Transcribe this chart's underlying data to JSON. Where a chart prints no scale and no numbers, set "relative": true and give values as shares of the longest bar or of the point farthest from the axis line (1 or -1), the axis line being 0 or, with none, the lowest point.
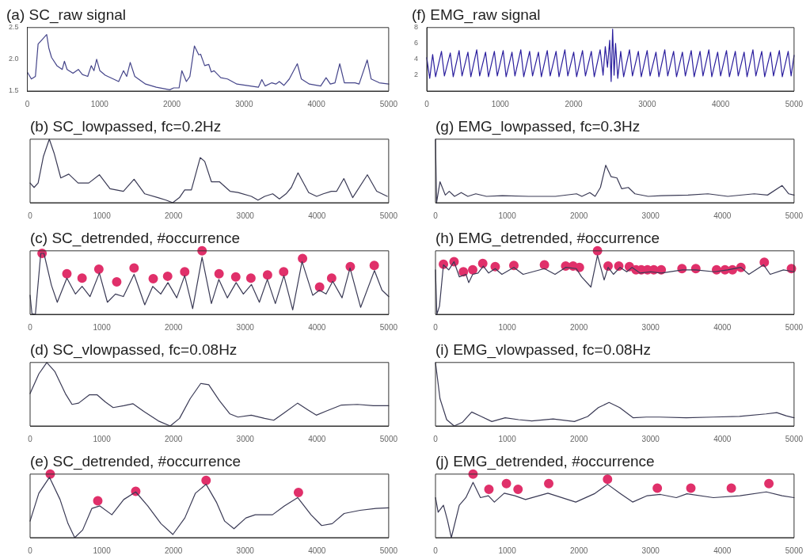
{
  "chart_data": [
    {
      "type": "line",
      "title": "(a) SC_raw signal",
      "xlim": [
        0,
        5000
      ],
      "xticks": [
        0,
        1000,
        2000,
        3000,
        4000,
        5000
      ],
      "ylim": [
        1.5,
        2.5
      ],
      "yticks": [
        1.5,
        {
          "value": 2,
          "label": "2.0"
        },
        2.5
      ],
      "series": [
        {
          "color": "#45458a",
          "x": [
            0,
            56,
            112,
            149,
            204,
            268,
            297,
            335,
            409,
            483,
            513,
            550,
            632,
            706,
            762,
            836,
            885,
            922,
            959,
            1004,
            1078,
            1190,
            1264,
            1331,
            1375,
            1424,
            1487,
            1636,
            1784,
            1970,
            2026,
            2100,
            2138,
            2201,
            2249,
            2312,
            2372,
            2398,
            2454,
            2510,
            2546,
            2584,
            2677,
            2770,
            2900,
            3086,
            3197,
            3245,
            3290,
            3383,
            3439,
            3487,
            3550,
            3625,
            3736,
            3792,
            3903,
            4059,
            4134,
            4193,
            4257,
            4323,
            4387,
            4535,
            4591,
            4703,
            4758,
            4870,
            5000
          ],
          "values": [
            1.8,
            1.69,
            1.73,
            2.24,
            2.31,
            2.39,
            2.18,
            2.03,
            1.9,
            1.84,
            1.97,
            1.84,
            1.78,
            1.84,
            1.76,
            1.73,
            1.9,
            1.82,
            2.0,
            1.82,
            1.75,
            1.69,
            1.65,
            1.82,
            1.73,
            1.95,
            1.73,
            1.61,
            1.56,
            1.52,
            1.55,
            1.55,
            1.82,
            1.65,
            1.73,
            2.21,
            2.07,
            2.08,
            1.9,
            1.92,
            1.8,
            1.82,
            1.71,
            1.69,
            1.61,
            1.58,
            1.56,
            1.68,
            1.58,
            1.63,
            1.61,
            1.65,
            1.59,
            1.69,
            1.93,
            1.69,
            1.61,
            1.58,
            1.71,
            1.61,
            1.63,
            1.93,
            1.63,
            1.63,
            1.61,
            1.99,
            1.69,
            1.63,
            1.61
          ]
        }
      ]
    },
    {
      "type": "line",
      "title": "(b) SC_lowpassed, fc=0.2Hz",
      "relative": true,
      "xlim": [
        0,
        5000
      ],
      "xticks": [
        0,
        1000,
        2000,
        3000,
        4000,
        5000
      ],
      "series": [
        {
          "color": "#3a3a55",
          "x": [
            0,
            56,
            112,
            186,
            268,
            335,
            428,
            539,
            669,
            818,
            966,
            1115,
            1301,
            1450,
            1599,
            1784,
            1896,
            1989,
            2082,
            2156,
            2249,
            2372,
            2435,
            2528,
            2640,
            2788,
            2900,
            3086,
            3178,
            3271,
            3383,
            3476,
            3569,
            3643,
            3736,
            3885,
            3996,
            4089,
            4201,
            4275,
            4375,
            4498,
            4703,
            4833,
            4981
          ],
          "values": [
            0.31,
            0.24,
            0.31,
            0.73,
            1.0,
            0.78,
            0.39,
            0.45,
            0.31,
            0.31,
            0.44,
            0.22,
            0.18,
            0.37,
            0.14,
            0.08,
            0.04,
            0.0,
            0.08,
            0.2,
            0.2,
            0.71,
            0.65,
            0.33,
            0.33,
            0.18,
            0.16,
            0.1,
            0.04,
            0.1,
            0.14,
            0.06,
            0.14,
            0.24,
            0.47,
            0.16,
            0.1,
            0.14,
            0.18,
            0.18,
            0.38,
            0.08,
            0.44,
            0.18,
            0.1
          ]
        }
      ]
    },
    {
      "type": "line",
      "title": "(c) SC_detrended, #occurrence",
      "relative": true,
      "xlim": [
        0,
        5000
      ],
      "xticks": [
        0,
        1000,
        2000,
        3000,
        4000,
        5000
      ],
      "series": [
        {
          "color": "#3a3a55",
          "x": [
            0,
            26,
            74,
            149,
            193,
            297,
            379,
            513,
            632,
            725,
            836,
            966,
            1078,
            1190,
            1301,
            1450,
            1599,
            1710,
            1822,
            1922,
            2045,
            2156,
            2267,
            2398,
            2528,
            2632,
            2751,
            2873,
            2974,
            3086,
            3197,
            3308,
            3420,
            3539,
            3662,
            3792,
            3941,
            4034,
            4127,
            4220,
            4350,
            4461,
            4609,
            4802,
            4907,
            5000
          ],
          "values": [
            0.3,
            0.01,
            0.0,
            0.96,
            0.96,
            0.46,
            0.19,
            0.57,
            0.32,
            0.44,
            0.28,
            0.65,
            0.19,
            0.32,
            0.28,
            0.63,
            0.15,
            0.44,
            0.32,
            0.5,
            0.26,
            0.61,
            0.09,
            0.9,
            0.17,
            0.55,
            0.26,
            0.5,
            0.32,
            0.47,
            0.19,
            0.55,
            0.17,
            0.61,
            0.07,
            0.83,
            0.3,
            0.38,
            0.32,
            0.52,
            0.26,
            0.73,
            0.11,
            0.69,
            0.38,
            0.28
          ]
        },
        {
          "type": "scatter",
          "marker": "circle",
          "color": "#e0306a",
          "x": [
            167,
            513,
            725,
            959,
            1208,
            1450,
            1717,
            1918,
            2156,
            2398,
            2635,
            2868,
            3079,
            3311,
            3536,
            3799,
            4037,
            4205,
            4465,
            4799
          ],
          "values": [
            0.96,
            0.64,
            0.57,
            0.71,
            0.51,
            0.73,
            0.56,
            0.6,
            0.67,
            1.0,
            0.64,
            0.59,
            0.57,
            0.62,
            0.67,
            0.88,
            0.43,
            0.57,
            0.75,
            0.77
          ]
        }
      ]
    },
    {
      "type": "line",
      "title": "(d) SC_vlowpassed, fc=0.08Hz",
      "relative": true,
      "xlim": [
        0,
        5000
      ],
      "xticks": [
        0,
        1000,
        2000,
        3000,
        4000,
        5000
      ],
      "series": [
        {
          "color": "#3a3a55",
          "x": [
            0,
            122,
            233,
            344,
            492,
            585,
            677,
            825,
            936,
            1047,
            1158,
            1306,
            1436,
            1584,
            1788,
            1954,
            2084,
            2232,
            2380,
            2491,
            2639,
            2787,
            2898,
            3084,
            3269,
            3398,
            3546,
            3731,
            3879,
            3991,
            4120,
            4342,
            4564,
            4786,
            5000
          ],
          "values": [
            0.51,
            0.82,
            1.0,
            0.86,
            0.51,
            0.34,
            0.36,
            0.49,
            0.49,
            0.38,
            0.29,
            0.32,
            0.35,
            0.23,
            0.08,
            0.0,
            0.12,
            0.43,
            0.67,
            0.65,
            0.4,
            0.19,
            0.14,
            0.17,
            0.12,
            0.09,
            0.21,
            0.36,
            0.25,
            0.17,
            0.23,
            0.33,
            0.34,
            0.32,
            0.32
          ]
        }
      ]
    },
    {
      "type": "line",
      "title": "(e) SC_detrended, #occurrence",
      "relative": true,
      "xlim": [
        0,
        5000
      ],
      "xticks": [
        0,
        1000,
        2000,
        3000,
        4000,
        5000
      ],
      "series": [
        {
          "color": "#3a3a55",
          "x": [
            0,
            122,
            270,
            418,
            529,
            622,
            733,
            862,
            973,
            1140,
            1306,
            1473,
            1640,
            1825,
            1991,
            2158,
            2306,
            2454,
            2602,
            2713,
            2843,
            3010,
            3139,
            3380,
            3546,
            3731,
            3917,
            4065,
            4213,
            4379,
            4601,
            4823,
            5000
          ],
          "values": [
            0.26,
            0.7,
            0.95,
            0.6,
            0.22,
            0.0,
            0.12,
            0.46,
            0.5,
            0.36,
            0.6,
            0.72,
            0.5,
            0.22,
            0.05,
            0.31,
            0.7,
            0.84,
            0.55,
            0.26,
            0.14,
            0.31,
            0.36,
            0.36,
            0.5,
            0.63,
            0.36,
            0.19,
            0.22,
            0.38,
            0.43,
            0.46,
            0.47
          ]
        },
        {
          "type": "scatter",
          "marker": "circle",
          "color": "#e0306a",
          "x": [
            281,
            944,
            1473,
            2454,
            3742
          ],
          "values": [
            1.0,
            0.58,
            0.73,
            0.9,
            0.71
          ]
        }
      ]
    },
    {
      "type": "line",
      "title": "(f) EMG_raw signal",
      "xlim": [
        0,
        5000
      ],
      "xticks": [
        0,
        1000,
        2000,
        3000,
        4000,
        5000
      ],
      "ylim": [
        0,
        8
      ],
      "yticks": [
        2,
        4,
        6,
        8
      ],
      "series": [
        {
          "color": "#2b1f9e",
          "x": [
            0,
            40,
            80,
            120,
            200,
            240,
            320,
            360,
            440,
            480,
            560,
            600,
            680,
            720,
            800,
            840,
            920,
            960,
            1040,
            1080,
            1160,
            1200,
            1280,
            1320,
            1400,
            1440,
            1520,
            1560,
            1640,
            1680,
            1760,
            1800,
            1880,
            1920,
            2000,
            2040,
            2120,
            2160,
            2240,
            2280,
            2360,
            2400,
            2430,
            2460,
            2490,
            2510,
            2530,
            2550,
            2570,
            2600,
            2640,
            2680,
            2760,
            2800,
            2880,
            2920,
            3000,
            3040,
            3120,
            3160,
            3240,
            3280,
            3360,
            3400,
            3480,
            3520,
            3600,
            3640,
            3720,
            3760,
            3840,
            3880,
            3960,
            4000,
            4080,
            4120,
            4200,
            4240,
            4320,
            4360,
            4440,
            4480,
            4560,
            4600,
            4680,
            4720,
            4800,
            4840,
            4920,
            4960,
            5000
          ],
          "values": [
            4.2,
            1.6,
            4.6,
            1.8,
            5.0,
            1.9,
            4.8,
            1.8,
            5.1,
            1.9,
            4.9,
            1.8,
            5.2,
            1.9,
            4.9,
            1.8,
            5.0,
            1.9,
            5.1,
            1.8,
            4.9,
            1.9,
            5.2,
            1.8,
            5.0,
            1.9,
            4.9,
            1.8,
            5.1,
            1.9,
            5.0,
            1.8,
            5.2,
            1.9,
            4.9,
            1.8,
            5.1,
            1.9,
            5.0,
            1.8,
            5.2,
            2.0,
            5.6,
            3.0,
            6.4,
            1.2,
            7.8,
            2.0,
            6.0,
            1.6,
            5.0,
            1.8,
            5.2,
            1.9,
            5.0,
            1.8,
            5.1,
            1.9,
            4.9,
            1.8,
            5.2,
            1.9,
            5.0,
            1.8,
            4.9,
            1.9,
            5.1,
            1.8,
            5.0,
            1.9,
            5.2,
            1.8,
            4.9,
            1.9,
            5.1,
            1.8,
            5.0,
            1.9,
            4.9,
            1.8,
            5.2,
            1.9,
            5.0,
            1.8,
            4.9,
            1.9,
            5.1,
            1.8,
            5.0,
            1.9,
            4.5
          ]
        }
      ]
    },
    {
      "type": "line",
      "title": "(g) EMG_lowpassed, fc=0.3Hz",
      "relative": true,
      "xlim": [
        0,
        5000
      ],
      "xticks": [
        0,
        1000,
        2000,
        3000,
        4000,
        5000
      ],
      "series": [
        {
          "color": "#3a3a55",
          "x": [
            0,
            15,
            63,
            137,
            192,
            266,
            359,
            451,
            562,
            710,
            932,
            1302,
            1672,
            1967,
            2041,
            2152,
            2226,
            2300,
            2374,
            2448,
            2530,
            2596,
            2689,
            2781,
            2966,
            3151,
            3521,
            3799,
            4076,
            4445,
            4630,
            4834,
            4926,
            5000
          ],
          "values": [
            1.0,
            0.0,
            0.33,
            0.12,
            0.18,
            0.1,
            0.16,
            0.1,
            0.14,
            0.1,
            0.11,
            0.1,
            0.1,
            0.14,
            0.1,
            0.16,
            0.1,
            0.24,
            0.59,
            0.41,
            0.39,
            0.22,
            0.24,
            0.14,
            0.1,
            0.11,
            0.12,
            0.14,
            0.1,
            0.14,
            0.12,
            0.27,
            0.14,
            0.12
          ]
        }
      ]
    },
    {
      "type": "line",
      "title": "(h) EMG_detrended, #occurrence",
      "relative": true,
      "xlim": [
        0,
        5000
      ],
      "xticks": [
        0,
        1000,
        2000,
        3000,
        4000,
        5000
      ],
      "series": [
        {
          "color": "#3a3a55",
          "x": [
            0,
            19,
            56,
            111,
            185,
            259,
            333,
            426,
            463,
            519,
            593,
            667,
            741,
            833,
            926,
            1093,
            1222,
            1519,
            1667,
            1815,
            1963,
            2037,
            2167,
            2259,
            2352,
            2407,
            2481,
            2574,
            2667,
            2741,
            2852,
            3000,
            3148,
            3444,
            3630,
            3889,
            4074,
            4259,
            4370,
            4574,
            4667,
            4852,
            5000
          ],
          "values": [
            0.7,
            0.0,
            0.13,
            0.78,
            0.7,
            0.83,
            0.59,
            0.63,
            0.5,
            0.63,
            0.65,
            0.76,
            0.65,
            0.72,
            0.63,
            0.74,
            0.63,
            0.72,
            0.63,
            0.74,
            0.72,
            0.59,
            0.43,
            0.93,
            0.54,
            0.74,
            0.63,
            0.74,
            0.67,
            0.74,
            0.65,
            0.67,
            0.65,
            0.7,
            0.7,
            0.67,
            0.7,
            0.74,
            0.63,
            0.78,
            0.63,
            0.7,
            0.67
          ]
        },
        {
          "type": "scatter",
          "marker": "circle",
          "color": "#e0306a",
          "x": [
            111,
            259,
            389,
            519,
            659,
            833,
            1093,
            1519,
            1815,
            1919,
            2007,
            2259,
            2407,
            2556,
            2704,
            2796,
            2870,
            2956,
            3044,
            3148,
            3437,
            3630,
            3919,
            4037,
            4141,
            4259,
            4585,
            4963
          ],
          "values": [
            0.79,
            0.83,
            0.67,
            0.7,
            0.8,
            0.75,
            0.77,
            0.78,
            0.76,
            0.76,
            0.74,
            1.0,
            0.76,
            0.76,
            0.75,
            0.7,
            0.7,
            0.7,
            0.7,
            0.7,
            0.72,
            0.72,
            0.7,
            0.7,
            0.7,
            0.74,
            0.82,
            0.72
          ]
        }
      ]
    },
    {
      "type": "line",
      "title": "(i) EMG_vlowpassed, fc=0.08Hz",
      "relative": true,
      "xlim": [
        0,
        5000
      ],
      "xticks": [
        0,
        1000,
        2000,
        3000,
        4000,
        5000
      ],
      "series": [
        {
          "color": "#3a3a55",
          "x": [
            0,
            63,
            156,
            260,
            378,
            505,
            638,
            786,
            972,
            1158,
            1343,
            1640,
            1937,
            2123,
            2271,
            2420,
            2568,
            2754,
            2940,
            3125,
            3497,
            3868,
            4239,
            4610,
            4759,
            4889,
            5000
          ],
          "values": [
            1.0,
            0.43,
            0.1,
            0.0,
            0.06,
            0.22,
            0.15,
            0.07,
            0.13,
            0.1,
            0.08,
            0.11,
            0.07,
            0.15,
            0.29,
            0.37,
            0.29,
            0.13,
            0.14,
            0.14,
            0.13,
            0.14,
            0.15,
            0.19,
            0.21,
            0.16,
            0.13
          ]
        }
      ]
    },
    {
      "type": "line",
      "title": "(j) EMG_detrended, #occurrence",
      "relative": true,
      "xlim": [
        0,
        5000
      ],
      "xticks": [
        0,
        1000,
        2000,
        3000,
        4000,
        5000
      ],
      "series": [
        {
          "color": "#3a3a55",
          "x": [
            0,
            37,
            111,
            166,
            221,
            332,
            424,
            524,
            627,
            738,
            821,
            959,
            1107,
            1255,
            1568,
            1956,
            2214,
            2399,
            2583,
            2749,
            2952,
            3137,
            3358,
            3506,
            3875,
            4244,
            4613,
            4834,
            5000
          ],
          "values": [
            0.63,
            0.4,
            0.51,
            0.28,
            0.0,
            0.51,
            0.63,
            0.87,
            0.63,
            0.66,
            0.56,
            0.7,
            0.66,
            0.6,
            0.7,
            0.56,
            0.69,
            0.84,
            0.69,
            0.56,
            0.66,
            0.68,
            0.63,
            0.69,
            0.63,
            0.66,
            0.72,
            0.66,
            0.63
          ]
        },
        {
          "type": "scatter",
          "marker": "circle",
          "color": "#e0306a",
          "x": [
            524,
            745,
            989,
            1151,
            1579,
            2399,
            3093,
            3561,
            4125,
            4649
          ],
          "values": [
            1.0,
            0.76,
            0.85,
            0.76,
            0.85,
            0.92,
            0.78,
            0.78,
            0.78,
            0.85
          ]
        }
      ]
    }
  ]
}
